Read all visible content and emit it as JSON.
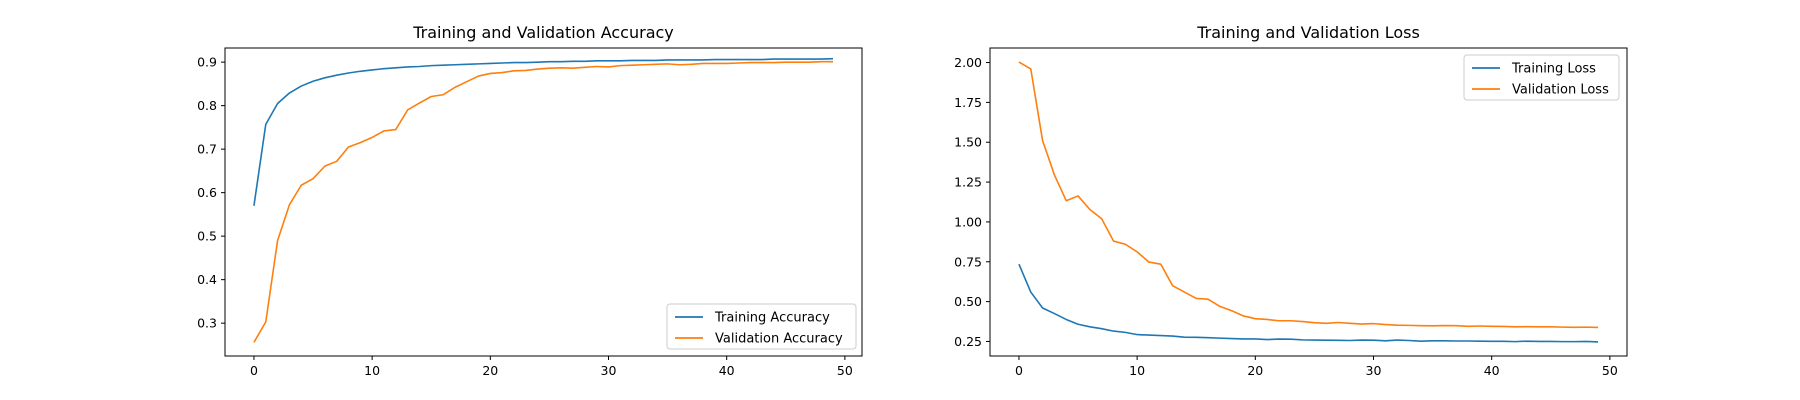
{
  "chart_data": [
    {
      "type": "line",
      "title": "Training and Validation Accuracy",
      "xlabel": "",
      "ylabel": "",
      "xlim": [
        -2.45,
        51.45
      ],
      "ylim": [
        0.2245,
        0.9325
      ],
      "xticks": [
        0,
        10,
        20,
        30,
        40,
        50
      ],
      "yticks": [
        0.3,
        0.4,
        0.5,
        0.6,
        0.7,
        0.8,
        0.9
      ],
      "ytick_labels": [
        "0.3",
        "0.4",
        "0.5",
        "0.6",
        "0.7",
        "0.8",
        "0.9"
      ],
      "legend_position": "lower-right",
      "series": [
        {
          "name": "Training Accuracy",
          "color": "#1f77b4",
          "x": [
            0,
            1,
            2,
            3,
            4,
            5,
            6,
            7,
            8,
            9,
            10,
            11,
            12,
            13,
            14,
            15,
            16,
            17,
            18,
            19,
            20,
            21,
            22,
            23,
            24,
            25,
            26,
            27,
            28,
            29,
            30,
            31,
            32,
            33,
            34,
            35,
            36,
            37,
            38,
            39,
            40,
            41,
            42,
            43,
            44,
            45,
            46,
            47,
            48,
            49
          ],
          "values": [
            0.57,
            0.757,
            0.805,
            0.829,
            0.845,
            0.856,
            0.864,
            0.87,
            0.875,
            0.879,
            0.882,
            0.885,
            0.887,
            0.889,
            0.89,
            0.892,
            0.893,
            0.894,
            0.895,
            0.896,
            0.897,
            0.898,
            0.899,
            0.899,
            0.9,
            0.901,
            0.901,
            0.902,
            0.902,
            0.903,
            0.903,
            0.903,
            0.904,
            0.904,
            0.904,
            0.905,
            0.905,
            0.905,
            0.905,
            0.906,
            0.906,
            0.906,
            0.906,
            0.906,
            0.907,
            0.907,
            0.907,
            0.907,
            0.907,
            0.908
          ]
        },
        {
          "name": "Validation Accuracy",
          "color": "#ff7f0e",
          "x": [
            0,
            1,
            2,
            3,
            4,
            5,
            6,
            7,
            8,
            9,
            10,
            11,
            12,
            13,
            14,
            15,
            16,
            17,
            18,
            19,
            20,
            21,
            22,
            23,
            24,
            25,
            26,
            27,
            28,
            29,
            30,
            31,
            32,
            33,
            34,
            35,
            36,
            37,
            38,
            39,
            40,
            41,
            42,
            43,
            44,
            45,
            46,
            47,
            48,
            49
          ],
          "values": [
            0.256,
            0.303,
            0.49,
            0.572,
            0.617,
            0.632,
            0.661,
            0.672,
            0.705,
            0.715,
            0.727,
            0.742,
            0.745,
            0.79,
            0.806,
            0.821,
            0.825,
            0.842,
            0.855,
            0.868,
            0.874,
            0.876,
            0.88,
            0.881,
            0.884,
            0.886,
            0.887,
            0.886,
            0.888,
            0.89,
            0.889,
            0.892,
            0.893,
            0.894,
            0.895,
            0.896,
            0.894,
            0.895,
            0.897,
            0.897,
            0.897,
            0.898,
            0.899,
            0.899,
            0.899,
            0.9,
            0.9,
            0.9,
            0.901,
            0.901
          ]
        }
      ]
    },
    {
      "type": "line",
      "title": "Training and Validation Loss",
      "xlabel": "",
      "ylabel": "",
      "xlim": [
        -2.45,
        51.45
      ],
      "ylim": [
        0.1588,
        2.0912
      ],
      "xticks": [
        0,
        10,
        20,
        30,
        40,
        50
      ],
      "yticks": [
        0.25,
        0.5,
        0.75,
        1.0,
        1.25,
        1.5,
        1.75,
        2.0
      ],
      "ytick_labels": [
        "0.25",
        "0.50",
        "0.75",
        "1.00",
        "1.25",
        "1.50",
        "1.75",
        "2.00"
      ],
      "legend_position": "upper-right",
      "series": [
        {
          "name": "Training Loss",
          "color": "#1f77b4",
          "x": [
            0,
            1,
            2,
            3,
            4,
            5,
            6,
            7,
            8,
            9,
            10,
            11,
            12,
            13,
            14,
            15,
            16,
            17,
            18,
            19,
            20,
            21,
            22,
            23,
            24,
            25,
            26,
            27,
            28,
            29,
            30,
            31,
            32,
            33,
            34,
            35,
            36,
            37,
            38,
            39,
            40,
            41,
            42,
            43,
            44,
            45,
            46,
            47,
            48,
            49
          ],
          "values": [
            0.735,
            0.56,
            0.46,
            0.425,
            0.388,
            0.358,
            0.342,
            0.33,
            0.315,
            0.307,
            0.293,
            0.29,
            0.287,
            0.284,
            0.277,
            0.276,
            0.274,
            0.271,
            0.268,
            0.266,
            0.266,
            0.262,
            0.265,
            0.264,
            0.26,
            0.259,
            0.258,
            0.257,
            0.256,
            0.259,
            0.258,
            0.254,
            0.259,
            0.256,
            0.252,
            0.254,
            0.254,
            0.253,
            0.253,
            0.252,
            0.251,
            0.251,
            0.249,
            0.252,
            0.25,
            0.25,
            0.249,
            0.249,
            0.25,
            0.247
          ]
        },
        {
          "name": "Validation Loss",
          "color": "#ff7f0e",
          "x": [
            0,
            1,
            2,
            3,
            4,
            5,
            6,
            7,
            8,
            9,
            10,
            11,
            12,
            13,
            14,
            15,
            16,
            17,
            18,
            19,
            20,
            21,
            22,
            23,
            24,
            25,
            26,
            27,
            28,
            29,
            30,
            31,
            32,
            33,
            34,
            35,
            36,
            37,
            38,
            39,
            40,
            41,
            42,
            43,
            44,
            45,
            46,
            47,
            48,
            49
          ],
          "values": [
            2.003,
            1.96,
            1.51,
            1.295,
            1.133,
            1.163,
            1.078,
            1.02,
            0.88,
            0.86,
            0.812,
            0.748,
            0.735,
            0.6,
            0.56,
            0.52,
            0.515,
            0.47,
            0.443,
            0.41,
            0.393,
            0.388,
            0.38,
            0.38,
            0.375,
            0.368,
            0.364,
            0.369,
            0.364,
            0.359,
            0.362,
            0.356,
            0.352,
            0.351,
            0.349,
            0.348,
            0.35,
            0.349,
            0.345,
            0.347,
            0.345,
            0.344,
            0.342,
            0.343,
            0.342,
            0.342,
            0.34,
            0.339,
            0.34,
            0.338
          ]
        }
      ]
    }
  ]
}
